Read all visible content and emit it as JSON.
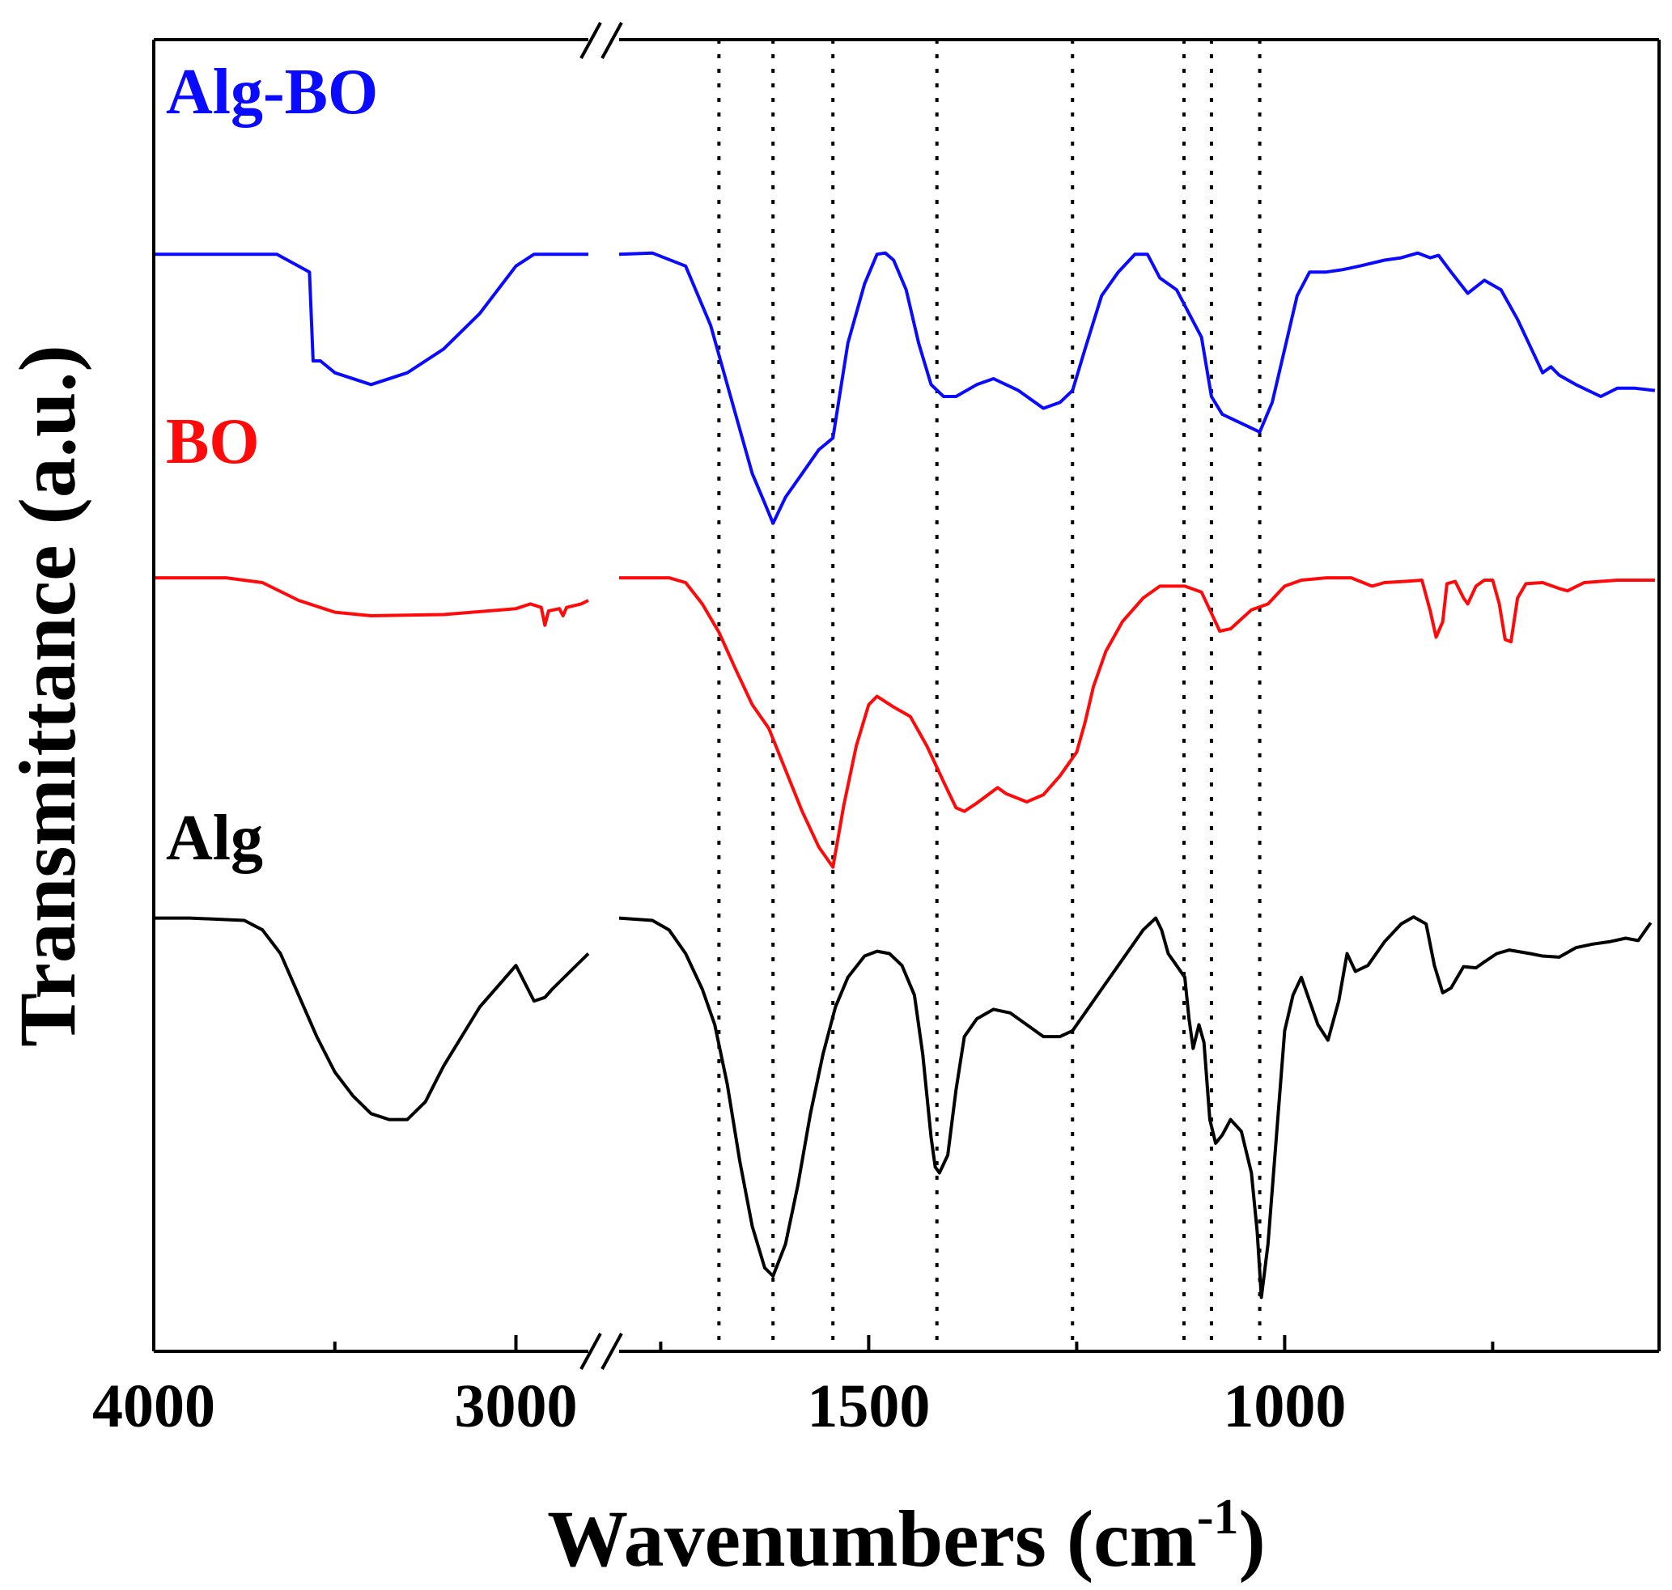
{
  "chart_data": {
    "type": "line",
    "title": "",
    "xlabel": "Wavenumbers (cm",
    "xlabel_superscript": "-1",
    "xlabel_suffix": ")",
    "ylabel": "Transmittance (a.u.)",
    "x_reversed": true,
    "x_break": true,
    "x_segments": [
      {
        "range": [
          4000,
          2800
        ],
        "ticks": [
          {
            "value": 4000,
            "label": "4000"
          },
          {
            "value": 3500,
            "label": ""
          },
          {
            "value": 3000,
            "label": "3000"
          }
        ]
      },
      {
        "range": [
          1800,
          550
        ],
        "ticks": [
          {
            "value": 1750,
            "label": ""
          },
          {
            "value": 1500,
            "label": "1500"
          },
          {
            "value": 1250,
            "label": ""
          },
          {
            "value": 1000,
            "label": "1000"
          },
          {
            "value": 750,
            "label": ""
          }
        ]
      }
    ],
    "y_range": [
      0,
      100
    ],
    "grid": false,
    "reference_lines_x": [
      1680,
      1615,
      1543,
      1418,
      1255,
      1121,
      1088,
      1030
    ],
    "series": [
      {
        "name": "Alg-BO",
        "color": "#0a0aff",
        "label_text": "Alg-BO",
        "points": [
          [
            4000,
            90.5
          ],
          [
            3800,
            90.5
          ],
          [
            3660,
            90.5
          ],
          [
            3570,
            89
          ],
          [
            3560,
            81.5
          ],
          [
            3540,
            81.5
          ],
          [
            3500,
            80.5
          ],
          [
            3400,
            79.5
          ],
          [
            3300,
            80.5
          ],
          [
            3200,
            82.5
          ],
          [
            3100,
            85.5
          ],
          [
            3000,
            89.5
          ],
          [
            2950,
            90.5
          ],
          [
            2800,
            90.5
          ],
          [
            1800,
            90.5
          ],
          [
            1760,
            90.6
          ],
          [
            1720,
            89.5
          ],
          [
            1690,
            84.5
          ],
          [
            1660,
            77
          ],
          [
            1640,
            72
          ],
          [
            1625,
            69.5
          ],
          [
            1615,
            67.8
          ],
          [
            1600,
            70
          ],
          [
            1580,
            72
          ],
          [
            1560,
            74
          ],
          [
            1543,
            75
          ],
          [
            1525,
            83
          ],
          [
            1505,
            88
          ],
          [
            1490,
            90.5
          ],
          [
            1480,
            90.6
          ],
          [
            1470,
            90
          ],
          [
            1455,
            87.5
          ],
          [
            1440,
            83
          ],
          [
            1425,
            79.5
          ],
          [
            1410,
            78.5
          ],
          [
            1395,
            78.5
          ],
          [
            1370,
            79.5
          ],
          [
            1350,
            80
          ],
          [
            1320,
            79
          ],
          [
            1290,
            77.5
          ],
          [
            1270,
            78
          ],
          [
            1255,
            79
          ],
          [
            1240,
            82.5
          ],
          [
            1220,
            87
          ],
          [
            1200,
            89
          ],
          [
            1180,
            90.5
          ],
          [
            1165,
            90.5
          ],
          [
            1150,
            88.5
          ],
          [
            1130,
            87.5
          ],
          [
            1115,
            85.5
          ],
          [
            1100,
            83.5
          ],
          [
            1088,
            78.5
          ],
          [
            1075,
            77
          ],
          [
            1060,
            76.5
          ],
          [
            1045,
            76
          ],
          [
            1030,
            75.5
          ],
          [
            1015,
            78
          ],
          [
            1000,
            82.5
          ],
          [
            985,
            87
          ],
          [
            970,
            89
          ],
          [
            950,
            89
          ],
          [
            930,
            89.2
          ],
          [
            910,
            89.5
          ],
          [
            880,
            90
          ],
          [
            860,
            90.2
          ],
          [
            840,
            90.6
          ],
          [
            825,
            90.2
          ],
          [
            815,
            90.4
          ],
          [
            800,
            89
          ],
          [
            780,
            87.2
          ],
          [
            760,
            88.3
          ],
          [
            740,
            87.5
          ],
          [
            720,
            85
          ],
          [
            700,
            82
          ],
          [
            690,
            80.5
          ],
          [
            680,
            81
          ],
          [
            670,
            80.3
          ],
          [
            650,
            79.5
          ],
          [
            620,
            78.5
          ],
          [
            600,
            79.2
          ],
          [
            580,
            79.2
          ],
          [
            555,
            79
          ]
        ]
      },
      {
        "name": "BO",
        "color": "#ff0a0a",
        "label_text": "BO",
        "points": [
          [
            4000,
            63.2
          ],
          [
            3800,
            63.2
          ],
          [
            3700,
            62.8
          ],
          [
            3600,
            61.3
          ],
          [
            3500,
            60.3
          ],
          [
            3400,
            60
          ],
          [
            3200,
            60.1
          ],
          [
            3000,
            60.6
          ],
          [
            2960,
            61
          ],
          [
            2930,
            60.7
          ],
          [
            2920,
            59.2
          ],
          [
            2910,
            60.4
          ],
          [
            2880,
            60.6
          ],
          [
            2870,
            60
          ],
          [
            2860,
            60.7
          ],
          [
            2820,
            61
          ],
          [
            2800,
            61.3
          ],
          [
            1800,
            63.2
          ],
          [
            1740,
            63.2
          ],
          [
            1720,
            62.8
          ],
          [
            1700,
            61
          ],
          [
            1680,
            58.6
          ],
          [
            1660,
            55.5
          ],
          [
            1640,
            52.5
          ],
          [
            1620,
            50.5
          ],
          [
            1600,
            47
          ],
          [
            1580,
            43.5
          ],
          [
            1560,
            40.5
          ],
          [
            1543,
            38.8
          ],
          [
            1530,
            44
          ],
          [
            1515,
            49
          ],
          [
            1500,
            52.5
          ],
          [
            1490,
            53.2
          ],
          [
            1470,
            52.3
          ],
          [
            1450,
            51.5
          ],
          [
            1430,
            49
          ],
          [
            1410,
            46
          ],
          [
            1395,
            43.8
          ],
          [
            1385,
            43.5
          ],
          [
            1370,
            44.2
          ],
          [
            1345,
            45.5
          ],
          [
            1335,
            45
          ],
          [
            1310,
            44.3
          ],
          [
            1290,
            44.9
          ],
          [
            1270,
            46.5
          ],
          [
            1250,
            48.5
          ],
          [
            1240,
            51
          ],
          [
            1230,
            54
          ],
          [
            1215,
            57
          ],
          [
            1195,
            59.5
          ],
          [
            1170,
            61.5
          ],
          [
            1150,
            62.5
          ],
          [
            1120,
            62.5
          ],
          [
            1100,
            62
          ],
          [
            1090,
            60.5
          ],
          [
            1078,
            58.7
          ],
          [
            1065,
            58.9
          ],
          [
            1040,
            60.5
          ],
          [
            1020,
            61
          ],
          [
            1000,
            62.5
          ],
          [
            980,
            63
          ],
          [
            950,
            63.2
          ],
          [
            920,
            63.2
          ],
          [
            895,
            62.5
          ],
          [
            880,
            62.8
          ],
          [
            855,
            62.9
          ],
          [
            835,
            63
          ],
          [
            825,
            60.4
          ],
          [
            818,
            58.2
          ],
          [
            810,
            59.5
          ],
          [
            805,
            62.7
          ],
          [
            795,
            62.9
          ],
          [
            785,
            61.5
          ],
          [
            780,
            61
          ],
          [
            770,
            62.5
          ],
          [
            760,
            63
          ],
          [
            750,
            63
          ],
          [
            742,
            61
          ],
          [
            735,
            58
          ],
          [
            728,
            57.8
          ],
          [
            720,
            61.5
          ],
          [
            710,
            62.7
          ],
          [
            690,
            62.8
          ],
          [
            670,
            62.3
          ],
          [
            660,
            62.1
          ],
          [
            640,
            62.8
          ],
          [
            600,
            63
          ],
          [
            555,
            63
          ]
        ]
      },
      {
        "name": "Alg",
        "color": "#000000",
        "label_text": "Alg",
        "points": [
          [
            4000,
            34.5
          ],
          [
            3900,
            34.5
          ],
          [
            3750,
            34.3
          ],
          [
            3700,
            33.5
          ],
          [
            3650,
            31.5
          ],
          [
            3600,
            28
          ],
          [
            3550,
            24.5
          ],
          [
            3500,
            21.5
          ],
          [
            3450,
            19.5
          ],
          [
            3400,
            18
          ],
          [
            3350,
            17.5
          ],
          [
            3300,
            17.5
          ],
          [
            3250,
            19
          ],
          [
            3200,
            22
          ],
          [
            3100,
            27
          ],
          [
            3000,
            30.5
          ],
          [
            2950,
            27.5
          ],
          [
            2920,
            27.8
          ],
          [
            2900,
            28.5
          ],
          [
            2850,
            30
          ],
          [
            2800,
            31.5
          ],
          [
            1800,
            34.5
          ],
          [
            1760,
            34.3
          ],
          [
            1740,
            33.5
          ],
          [
            1720,
            31.5
          ],
          [
            1700,
            28.5
          ],
          [
            1685,
            25.5
          ],
          [
            1670,
            20.5
          ],
          [
            1655,
            14
          ],
          [
            1640,
            8.5
          ],
          [
            1625,
            5
          ],
          [
            1615,
            4.3
          ],
          [
            1600,
            7
          ],
          [
            1585,
            12
          ],
          [
            1570,
            18
          ],
          [
            1555,
            23
          ],
          [
            1540,
            27
          ],
          [
            1525,
            29.5
          ],
          [
            1505,
            31.3
          ],
          [
            1490,
            31.7
          ],
          [
            1475,
            31.5
          ],
          [
            1460,
            30.5
          ],
          [
            1445,
            28
          ],
          [
            1435,
            23
          ],
          [
            1425,
            16
          ],
          [
            1420,
            13.5
          ],
          [
            1415,
            13
          ],
          [
            1405,
            14.5
          ],
          [
            1395,
            20
          ],
          [
            1385,
            24.5
          ],
          [
            1370,
            26
          ],
          [
            1350,
            26.8
          ],
          [
            1330,
            26.5
          ],
          [
            1310,
            25.5
          ],
          [
            1290,
            24.5
          ],
          [
            1270,
            24.5
          ],
          [
            1255,
            25
          ],
          [
            1240,
            26.5
          ],
          [
            1220,
            28.5
          ],
          [
            1200,
            30.5
          ],
          [
            1185,
            32
          ],
          [
            1170,
            33.5
          ],
          [
            1155,
            34.5
          ],
          [
            1148,
            33.5
          ],
          [
            1140,
            31.5
          ],
          [
            1130,
            30.5
          ],
          [
            1120,
            29.5
          ],
          [
            1115,
            26
          ],
          [
            1110,
            23.5
          ],
          [
            1103,
            25.5
          ],
          [
            1097,
            24
          ],
          [
            1090,
            17.5
          ],
          [
            1083,
            15.5
          ],
          [
            1075,
            16.2
          ],
          [
            1065,
            17.5
          ],
          [
            1052,
            16.5
          ],
          [
            1040,
            13
          ],
          [
            1033,
            8
          ],
          [
            1028,
            2.5
          ],
          [
            1020,
            7
          ],
          [
            1010,
            16
          ],
          [
            1000,
            25
          ],
          [
            990,
            28
          ],
          [
            980,
            29.5
          ],
          [
            970,
            27.5
          ],
          [
            960,
            25.5
          ],
          [
            948,
            24.2
          ],
          [
            935,
            27.5
          ],
          [
            925,
            31.5
          ],
          [
            915,
            30
          ],
          [
            900,
            30.5
          ],
          [
            880,
            32.5
          ],
          [
            860,
            34
          ],
          [
            845,
            34.6
          ],
          [
            830,
            34
          ],
          [
            820,
            30.5
          ],
          [
            810,
            28.2
          ],
          [
            800,
            28.6
          ],
          [
            785,
            30.4
          ],
          [
            770,
            30.3
          ],
          [
            760,
            30.8
          ],
          [
            745,
            31.5
          ],
          [
            730,
            31.8
          ],
          [
            705,
            31.5
          ],
          [
            690,
            31.3
          ],
          [
            670,
            31.2
          ],
          [
            650,
            32
          ],
          [
            630,
            32.3
          ],
          [
            610,
            32.5
          ],
          [
            590,
            32.8
          ],
          [
            575,
            32.6
          ],
          [
            560,
            34.1
          ]
        ]
      }
    ]
  }
}
